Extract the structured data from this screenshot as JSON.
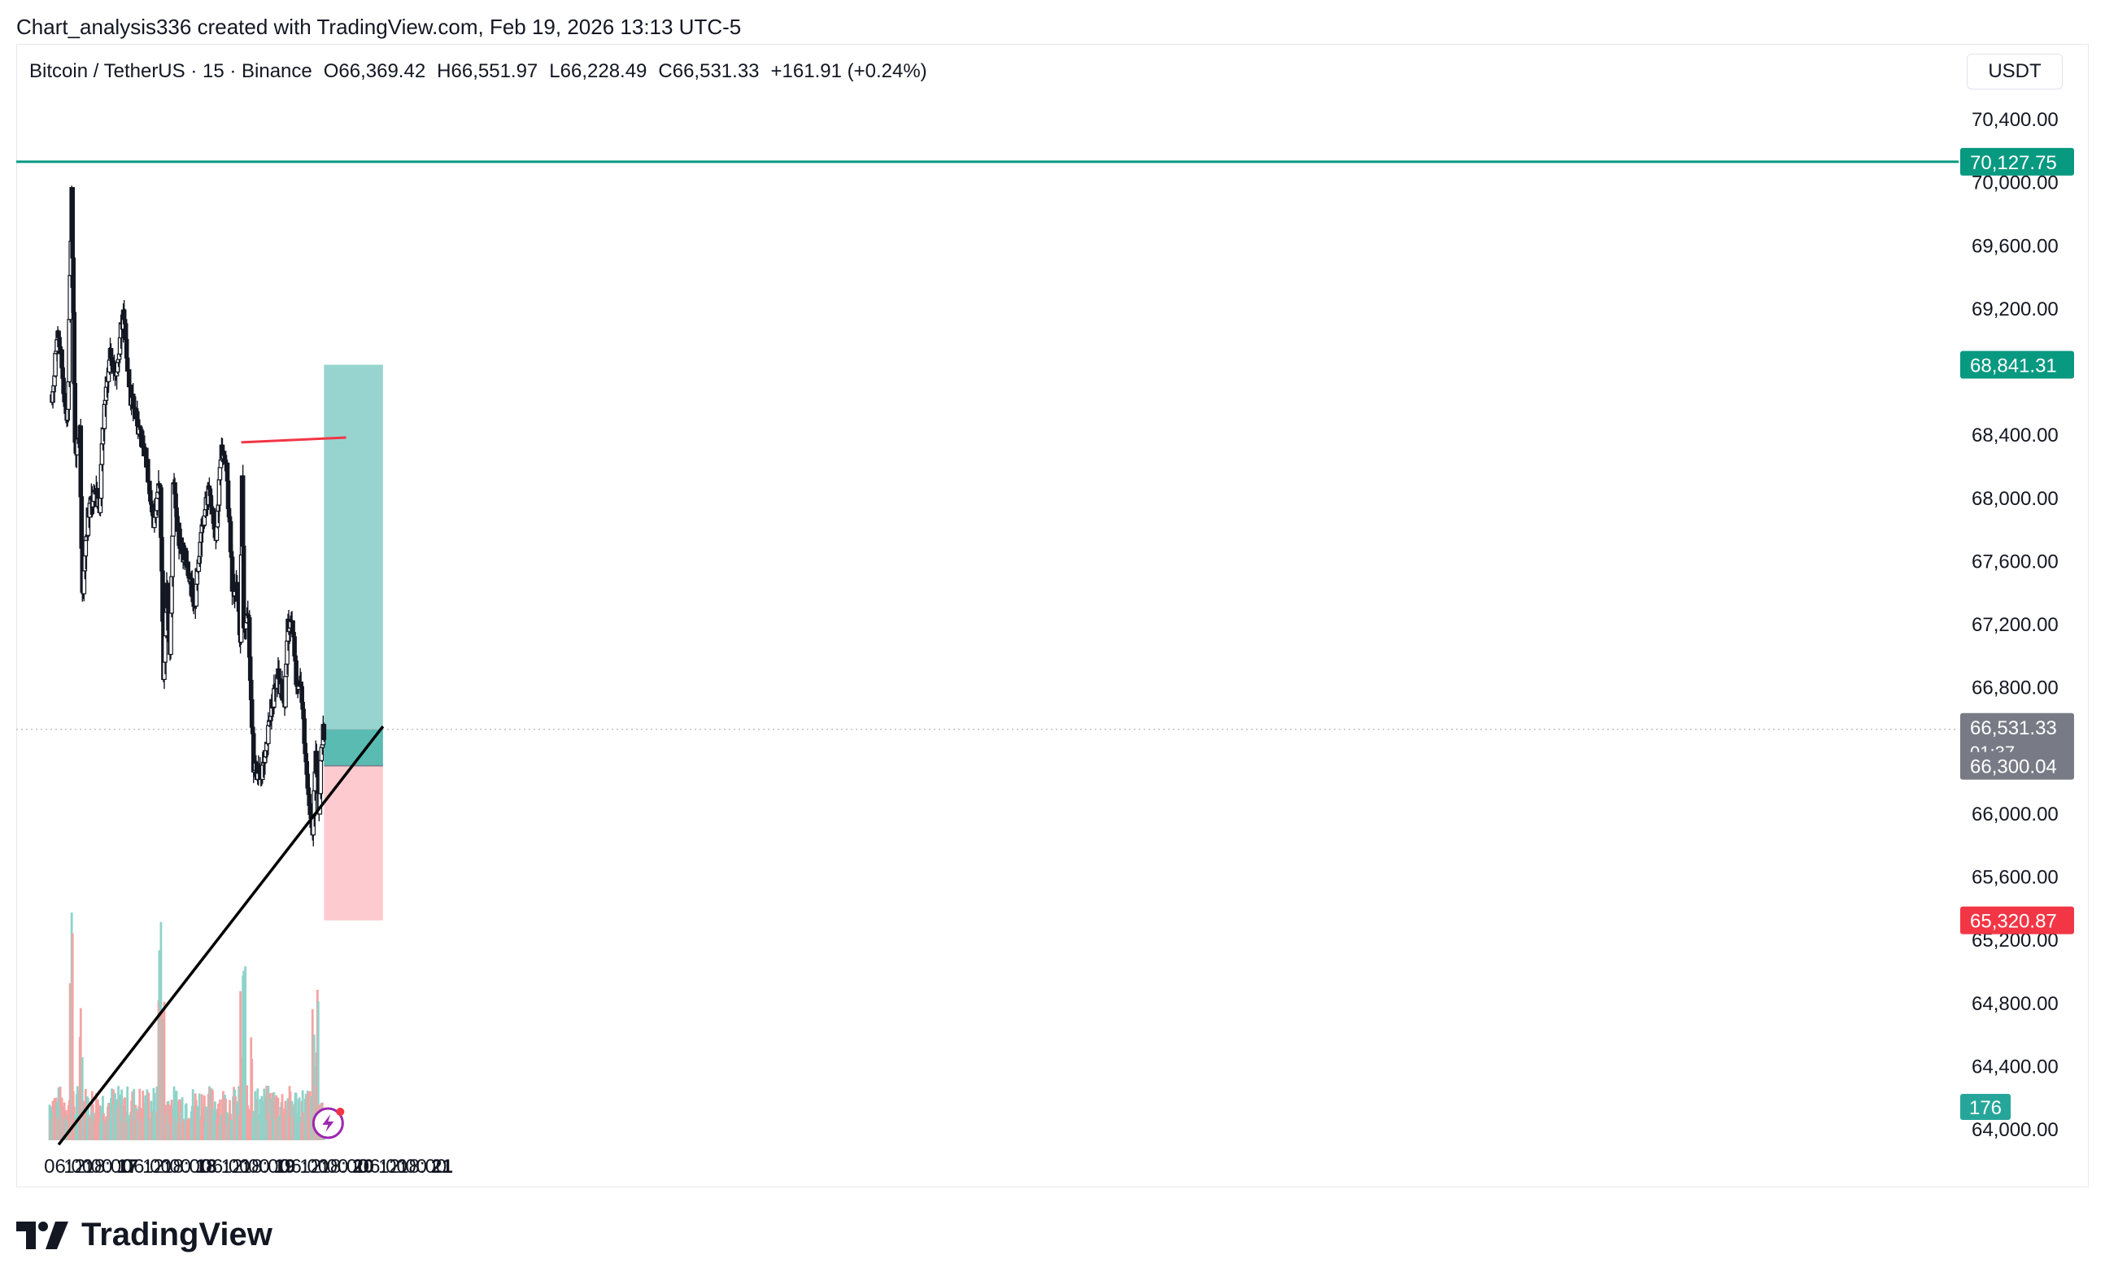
{
  "header": {
    "caption": "Chart_analysis336 created with TradingView.com, Feb 19, 2026 13:13 UTC-5"
  },
  "legend": {
    "symbol": "Bitcoin / TetherUS · 15 · Binance",
    "open": "O66,369.42",
    "high": "H66,551.97",
    "low": "L66,228.49",
    "close": "C66,531.33",
    "change": "+161.91 (+0.24%)"
  },
  "currency": "USDT",
  "brand": {
    "name": "TradingView"
  },
  "colors": {
    "up": "#26a69a",
    "down": "#ef5350",
    "candle": "#131722",
    "target": "#26a69a",
    "stop": "#f7525f",
    "resistance": "#f23645",
    "trendline": "#000000"
  },
  "chart_data": {
    "type": "candlestick",
    "instrument": "BTCUSDT",
    "timeframe": "15",
    "exchange": "Binance",
    "y_ticks": [
      "70,400.00",
      "70,000.00",
      "69,600.00",
      "69,200.00",
      "68,400.00",
      "68,000.00",
      "67,600.00",
      "67,200.00",
      "66,800.00",
      "66,000.00",
      "65,600.00",
      "65,200.00",
      "64,800.00",
      "64,400.00",
      "64,000.00"
    ],
    "x_ticks": [
      {
        "label": "06:00",
        "time": "2026-02-16 06:00"
      },
      {
        "label": "12:00",
        "time": "2026-02-16 12:00"
      },
      {
        "label": "18:00",
        "time": "2026-02-16 18:00"
      },
      {
        "label": "17",
        "time": "2026-02-17 00:00",
        "bold": true
      },
      {
        "label": "06:00",
        "time": "2026-02-17 06:00"
      },
      {
        "label": "12:00",
        "time": "2026-02-17 12:00"
      },
      {
        "label": "18:00",
        "time": "2026-02-17 18:00"
      },
      {
        "label": "18",
        "time": "2026-02-18 00:00",
        "bold": true
      },
      {
        "label": "06:00",
        "time": "2026-02-18 06:00"
      },
      {
        "label": "12:00",
        "time": "2026-02-18 12:00"
      },
      {
        "label": "18:00",
        "time": "2026-02-18 18:00"
      },
      {
        "label": "19",
        "time": "2026-02-19 00:00",
        "bold": true
      },
      {
        "label": "06:00",
        "time": "2026-02-19 06:00"
      },
      {
        "label": "12:00",
        "time": "2026-02-19 12:00"
      },
      {
        "label": "18:00",
        "time": "2026-02-19 18:00"
      },
      {
        "label": "20",
        "time": "2026-02-20 00:00",
        "bold": true
      },
      {
        "label": "06:00",
        "time": "2026-02-20 06:00"
      },
      {
        "label": "12:00",
        "time": "2026-02-20 12:00"
      },
      {
        "label": "18:00",
        "time": "2026-02-20 18:00"
      },
      {
        "label": "21",
        "time": "2026-02-21 00:00",
        "bold": true
      }
    ],
    "price_path": [
      [
        "2026-02-16 01:00",
        68650
      ],
      [
        "2026-02-16 03:00",
        69050
      ],
      [
        "2026-02-16 04:30",
        68700
      ],
      [
        "2026-02-16 05:45",
        68500
      ],
      [
        "2026-02-16 07:00",
        69950
      ],
      [
        "2026-02-16 08:00",
        68300
      ],
      [
        "2026-02-16 09:30",
        68400
      ],
      [
        "2026-02-16 10:15",
        67350
      ],
      [
        "2026-02-16 12:00",
        67900
      ],
      [
        "2026-02-16 14:00",
        68050
      ],
      [
        "2026-02-16 15:30",
        67950
      ],
      [
        "2026-02-16 16:45",
        68500
      ],
      [
        "2026-02-16 18:30",
        68900
      ],
      [
        "2026-02-16 20:30",
        68800
      ],
      [
        "2026-02-16 22:00",
        69050
      ],
      [
        "2026-02-16 23:00",
        69150
      ],
      [
        "2026-02-17 00:30",
        68700
      ],
      [
        "2026-02-17 02:00",
        68550
      ],
      [
        "2026-02-17 04:00",
        68400
      ],
      [
        "2026-02-17 06:00",
        68200
      ],
      [
        "2026-02-17 08:00",
        67850
      ],
      [
        "2026-02-17 10:00",
        68100
      ],
      [
        "2026-02-17 11:00",
        66850
      ],
      [
        "2026-02-17 12:00",
        67500
      ],
      [
        "2026-02-17 13:00",
        66950
      ],
      [
        "2026-02-17 14:00",
        68100
      ],
      [
        "2026-02-17 16:00",
        67700
      ],
      [
        "2026-02-17 18:00",
        67600
      ],
      [
        "2026-02-17 20:30",
        67300
      ],
      [
        "2026-02-17 22:30",
        67800
      ],
      [
        "2026-02-18 01:00",
        68050
      ],
      [
        "2026-02-18 03:00",
        67700
      ],
      [
        "2026-02-18 04:30",
        68300
      ],
      [
        "2026-02-18 06:00",
        68250
      ],
      [
        "2026-02-18 07:00",
        67900
      ],
      [
        "2026-02-18 08:00",
        67450
      ],
      [
        "2026-02-18 09:30",
        67400
      ],
      [
        "2026-02-18 10:30",
        67100
      ],
      [
        "2026-02-18 11:00",
        68100
      ],
      [
        "2026-02-18 11:30",
        67200
      ],
      [
        "2026-02-18 13:00",
        67200
      ],
      [
        "2026-02-18 14:30",
        66300
      ],
      [
        "2026-02-18 16:00",
        66250
      ],
      [
        "2026-02-18 18:00",
        66300
      ],
      [
        "2026-02-18 20:00",
        66700
      ],
      [
        "2026-02-18 22:00",
        66850
      ],
      [
        "2026-02-19 00:00",
        66700
      ],
      [
        "2026-02-19 01:00",
        67200
      ],
      [
        "2026-02-19 02:30",
        67150
      ],
      [
        "2026-02-19 03:30",
        66850
      ],
      [
        "2026-02-19 05:00",
        66800
      ],
      [
        "2026-02-19 06:30",
        66300
      ],
      [
        "2026-02-19 07:30",
        66100
      ],
      [
        "2026-02-19 08:30",
        65850
      ],
      [
        "2026-02-19 09:30",
        66350
      ],
      [
        "2026-02-19 10:30",
        66000
      ],
      [
        "2026-02-19 11:15",
        66450
      ],
      [
        "2026-02-19 12:00",
        66531.33
      ]
    ],
    "volume_max_label": "176",
    "price_labels": [
      {
        "value": 70127.75,
        "text": "70,127.75",
        "color": "#089981"
      },
      {
        "value": 68841.31,
        "text": "68,841.31",
        "color": "#089981"
      },
      {
        "value": 66531.33,
        "text": "66,531.33",
        "sub": "01:37",
        "color": "#787b86"
      },
      {
        "value": 66300.04,
        "text": "66,300.04",
        "color": "#787b86"
      },
      {
        "value": 65320.87,
        "text": "65,320.87",
        "color": "#f23645"
      }
    ],
    "horizontal_line": {
      "value": 70127.75,
      "color": "#089981"
    },
    "resistance_line": {
      "start": [
        "2026-02-18 10:45",
        68350
      ],
      "end": [
        "2026-02-19 18:45",
        68380
      ]
    },
    "trendline": {
      "start": [
        "2026-02-16 03:00",
        63900
      ],
      "end": [
        "2026-02-20 06:00",
        66550
      ]
    },
    "long_position": {
      "start": "2026-02-19 12:00",
      "end": "2026-02-20 06:00",
      "entry": 66300.04,
      "target": 68841.31,
      "stop": 65320.87,
      "current": 66531.33
    }
  }
}
